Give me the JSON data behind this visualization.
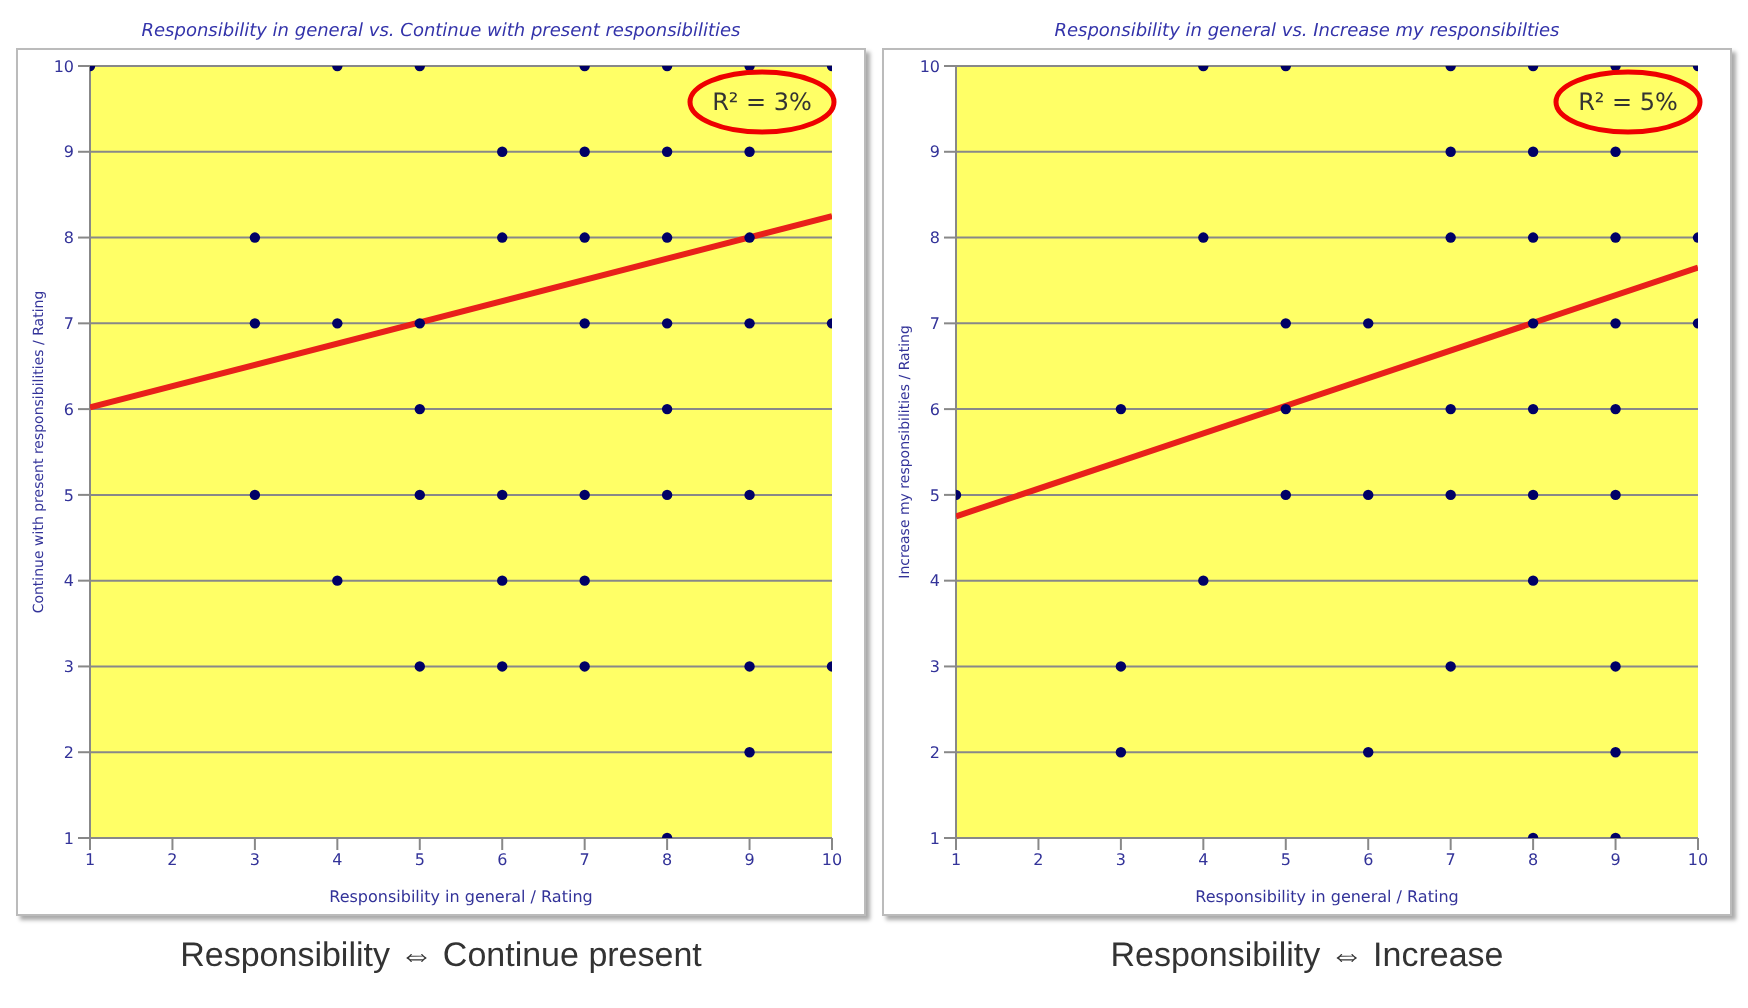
{
  "chart_data": [
    {
      "type": "scatter",
      "title": "Responsibility in general vs. Continue with present responsibilities",
      "xlabel": "Responsibility in general / Rating",
      "ylabel": "Continue with present responsibilities / Rating",
      "xlim": [
        1,
        10
      ],
      "xticks": [
        1,
        2,
        3,
        4,
        5,
        6,
        7,
        8,
        9,
        10
      ],
      "ylim": [
        1,
        10
      ],
      "yticks": [
        1,
        2,
        3,
        4,
        5,
        6,
        7,
        8,
        9,
        10
      ],
      "grid": "y",
      "series": [
        {
          "type": "scatter",
          "color": "#000066",
          "marker": "circle",
          "x": [
            1,
            4,
            5,
            7,
            8,
            9,
            10,
            6,
            7,
            8,
            9,
            3,
            6,
            7,
            8,
            9,
            3,
            4,
            5,
            7,
            8,
            9,
            10,
            5,
            8,
            3,
            5,
            6,
            7,
            8,
            9,
            4,
            6,
            7,
            5,
            6,
            7,
            9,
            10,
            9,
            8
          ],
          "values": [
            10,
            10,
            10,
            10,
            10,
            10,
            10,
            9,
            9,
            9,
            9,
            8,
            8,
            8,
            8,
            8,
            7,
            7,
            7,
            7,
            7,
            7,
            7,
            6,
            6,
            5,
            5,
            5,
            5,
            5,
            5,
            4,
            4,
            4,
            3,
            3,
            3,
            3,
            3,
            2,
            1
          ]
        },
        {
          "type": "line",
          "color": "#e8201a",
          "marker": "none",
          "line_style": "solid",
          "x": [
            1,
            10
          ],
          "values": [
            6.02,
            8.25
          ]
        }
      ],
      "annotations": [
        "R² = 3%",
        "Responsibility ⇔ Continue present"
      ]
    },
    {
      "type": "scatter",
      "title": "Responsibility in general vs. Increase my responsibilties",
      "xlabel": "Responsibility in general / Rating",
      "ylabel": "Increase my responsibilities / Rating",
      "xlim": [
        1,
        10
      ],
      "xticks": [
        1,
        2,
        3,
        4,
        5,
        6,
        7,
        8,
        9,
        10
      ],
      "ylim": [
        1,
        10
      ],
      "yticks": [
        1,
        2,
        3,
        4,
        5,
        6,
        7,
        8,
        9,
        10
      ],
      "grid": "y",
      "series": [
        {
          "type": "scatter",
          "color": "#000066",
          "marker": "circle",
          "x": [
            4,
            5,
            7,
            8,
            9,
            10,
            7,
            8,
            9,
            4,
            7,
            8,
            9,
            10,
            5,
            6,
            8,
            9,
            10,
            3,
            5,
            7,
            8,
            9,
            1,
            5,
            6,
            7,
            8,
            9,
            4,
            8,
            3,
            7,
            9,
            3,
            6,
            9,
            8,
            9
          ],
          "values": [
            10,
            10,
            10,
            10,
            10,
            10,
            9,
            9,
            9,
            8,
            8,
            8,
            8,
            8,
            7,
            7,
            7,
            7,
            7,
            6,
            6,
            6,
            6,
            6,
            5,
            5,
            5,
            5,
            5,
            5,
            4,
            4,
            3,
            3,
            3,
            2,
            2,
            2,
            1,
            1
          ]
        },
        {
          "type": "line",
          "color": "#e8201a",
          "marker": "none",
          "line_style": "solid",
          "x": [
            1,
            10
          ],
          "values": [
            4.75,
            7.65
          ]
        }
      ],
      "annotations": [
        "R² = 5%",
        "Responsibility ⇔ Increase"
      ]
    }
  ]
}
